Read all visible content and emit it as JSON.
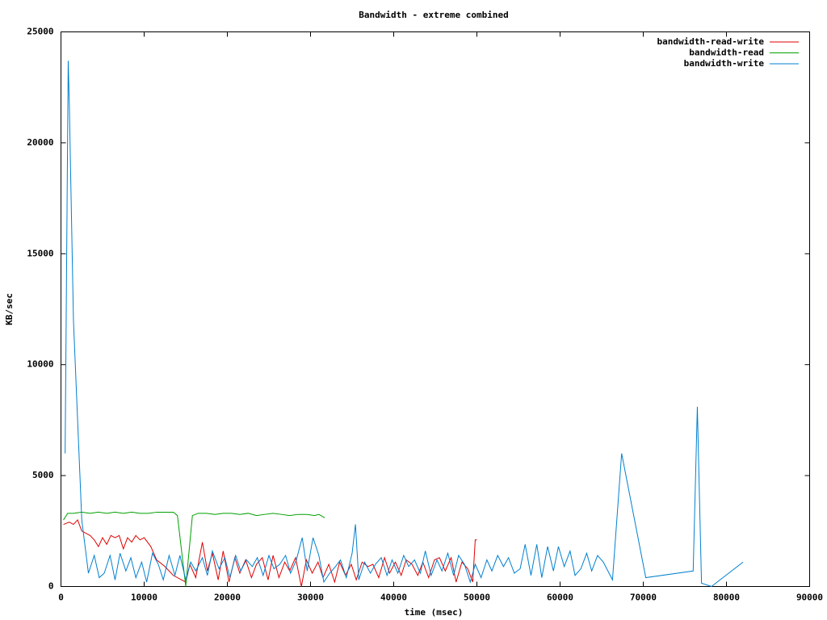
{
  "chart_data": {
    "type": "line",
    "title": "Bandwidth - extreme combined",
    "x_label": "time (msec)",
    "y_label": "KB/sec",
    "xlim": [
      0,
      90000
    ],
    "xticks": [
      0,
      10000,
      20000,
      30000,
      40000,
      50000,
      60000,
      70000,
      80000,
      90000
    ],
    "ylim": [
      0,
      25000
    ],
    "yticks": [
      0,
      5000,
      10000,
      15000,
      20000,
      25000
    ],
    "grid": false,
    "legend_position": "top-right",
    "series": [
      {
        "name": "bandwidth-read-write",
        "color": "#e00000",
        "x": [
          300,
          1000,
          1500,
          2000,
          2500,
          3000,
          3500,
          4000,
          4500,
          5000,
          5500,
          6000,
          6500,
          7000,
          7500,
          8000,
          8500,
          9000,
          9500,
          10000,
          10800,
          11500,
          12500,
          13500,
          14500,
          15000,
          15500,
          16200,
          17000,
          17600,
          18200,
          18900,
          19500,
          20200,
          20900,
          21500,
          22200,
          22900,
          23500,
          24200,
          24900,
          25500,
          26200,
          26900,
          27500,
          28200,
          28900,
          29500,
          30200,
          30900,
          31500,
          32200,
          32900,
          33500,
          34200,
          34900,
          35500,
          36200,
          36900,
          37500,
          38200,
          38900,
          39500,
          40200,
          40900,
          41500,
          42200,
          42900,
          43500,
          44200,
          44900,
          45500,
          46200,
          46900,
          47500,
          48200,
          48900,
          49500,
          49800,
          50000
        ],
        "values": [
          2800,
          2900,
          2800,
          3000,
          2500,
          2400,
          2300,
          2100,
          1800,
          2200,
          1900,
          2300,
          2200,
          2300,
          1700,
          2200,
          2000,
          2300,
          2100,
          2200,
          1800,
          1200,
          900,
          500,
          300,
          200,
          1000,
          400,
          2000,
          700,
          1500,
          300,
          1600,
          200,
          1300,
          600,
          1200,
          400,
          1000,
          1300,
          300,
          1400,
          400,
          1100,
          700,
          1300,
          0,
          1200,
          600,
          1100,
          400,
          1000,
          200,
          1100,
          500,
          1000,
          300,
          1100,
          900,
          1000,
          400,
          1300,
          600,
          1100,
          500,
          1200,
          1000,
          500,
          1100,
          400,
          1200,
          1300,
          700,
          1300,
          200,
          1100,
          800,
          200,
          2100,
          2100
        ]
      },
      {
        "name": "bandwidth-read",
        "color": "#00a000",
        "x": [
          300,
          800,
          1500,
          2500,
          3500,
          4500,
          5500,
          6500,
          7500,
          8500,
          9500,
          10500,
          11500,
          12500,
          13500,
          14000,
          15000,
          15800,
          16500,
          17500,
          18500,
          19500,
          20500,
          21500,
          22500,
          23500,
          24500,
          25500,
          26500,
          27500,
          28500,
          29500,
          30500,
          31000,
          31700
        ],
        "values": [
          3000,
          3300,
          3300,
          3350,
          3300,
          3350,
          3300,
          3350,
          3300,
          3350,
          3300,
          3300,
          3350,
          3350,
          3350,
          3200,
          0,
          3200,
          3300,
          3300,
          3250,
          3300,
          3300,
          3250,
          3300,
          3200,
          3250,
          3300,
          3250,
          3200,
          3250,
          3250,
          3200,
          3250,
          3100
        ]
      },
      {
        "name": "bandwidth-write",
        "color": "#0080d0",
        "x": [
          500,
          870,
          1000,
          1500,
          2500,
          3300,
          4000,
          4600,
          5200,
          5900,
          6500,
          7100,
          7800,
          8400,
          9000,
          9700,
          10300,
          11000,
          11700,
          12300,
          13000,
          13700,
          14300,
          15000,
          15600,
          16200,
          17000,
          17600,
          18200,
          19000,
          19700,
          20300,
          21000,
          21600,
          22300,
          23000,
          23600,
          24300,
          25000,
          25600,
          26300,
          27000,
          27600,
          28300,
          29000,
          29600,
          30300,
          31000,
          31600,
          32300,
          33000,
          33600,
          34300,
          35000,
          35400,
          35800,
          36500,
          37200,
          37800,
          38500,
          39200,
          39800,
          40500,
          41200,
          41800,
          42500,
          43200,
          43800,
          44500,
          45200,
          45800,
          46500,
          47200,
          47800,
          48500,
          49200,
          49800,
          50500,
          51200,
          51800,
          52500,
          53200,
          53800,
          54500,
          55200,
          55800,
          56500,
          57200,
          57800,
          58500,
          59200,
          59800,
          60500,
          61200,
          61800,
          62500,
          63200,
          63800,
          64500,
          65200,
          66300,
          67400,
          70300,
          76000,
          76500,
          77000,
          78200,
          82000
        ],
        "values": [
          6000,
          23700,
          21800,
          12000,
          3000,
          600,
          1400,
          400,
          600,
          1400,
          300,
          1500,
          700,
          1300,
          400,
          1100,
          200,
          1500,
          1000,
          300,
          1400,
          500,
          1400,
          300,
          1100,
          700,
          1300,
          500,
          1600,
          800,
          1300,
          400,
          1400,
          700,
          1200,
          900,
          1300,
          500,
          1400,
          800,
          1000,
          1400,
          600,
          1200,
          2200,
          700,
          2200,
          1400,
          200,
          600,
          900,
          1200,
          400,
          1500,
          2800,
          300,
          1100,
          600,
          1000,
          1300,
          500,
          1200,
          600,
          1400,
          900,
          1200,
          600,
          1600,
          500,
          1200,
          700,
          1500,
          500,
          1400,
          1000,
          200,
          1000,
          400,
          1200,
          700,
          1400,
          900,
          1300,
          600,
          800,
          1900,
          500,
          1900,
          400,
          1800,
          700,
          1800,
          900,
          1600,
          500,
          800,
          1500,
          700,
          1400,
          1100,
          300,
          6000,
          400,
          700,
          8100,
          150,
          0,
          1100
        ]
      }
    ]
  }
}
